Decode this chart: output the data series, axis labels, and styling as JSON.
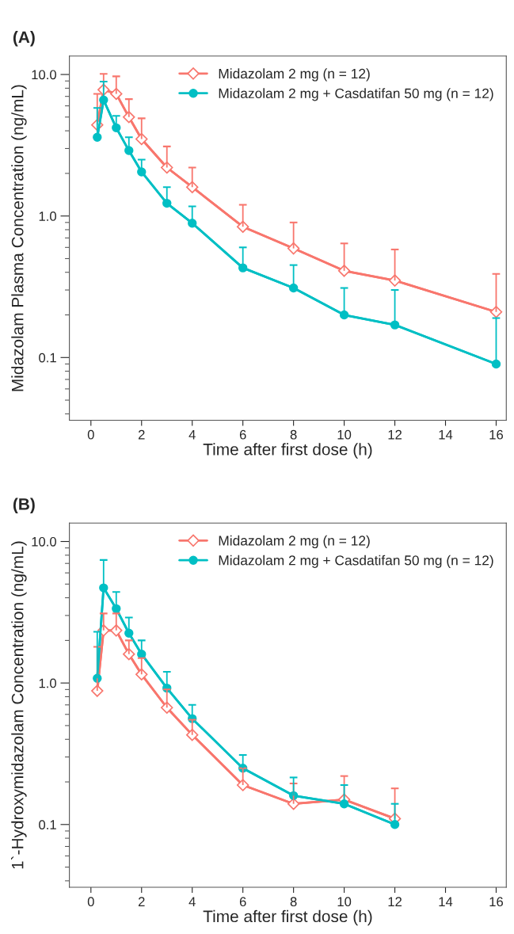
{
  "chart_data": [
    {
      "type": "line",
      "title": "(A)",
      "xlabel": "Time after first dose (h)",
      "ylabel": "Midazolam Plasma Concentration (ng/mL)",
      "log": "y",
      "xlim": [
        -0.85,
        16.4
      ],
      "xticks": [
        0,
        2,
        4,
        6,
        8,
        10,
        12,
        14,
        16
      ],
      "ylim": [
        0.036,
        13.5
      ],
      "yticks": [
        {
          "value": 0.04,
          "label": null
        },
        {
          "value": 0.05,
          "label": null
        },
        {
          "value": 0.06,
          "label": null
        },
        {
          "value": 0.07,
          "label": null
        },
        {
          "value": 0.08,
          "label": null
        },
        {
          "value": 0.09,
          "label": null
        },
        {
          "value": 0.1,
          "label": "0.1"
        },
        {
          "value": 0.2,
          "label": null
        },
        {
          "value": 0.3,
          "label": null
        },
        {
          "value": 0.4,
          "label": null
        },
        {
          "value": 0.5,
          "label": null
        },
        {
          "value": 0.6,
          "label": null
        },
        {
          "value": 0.7,
          "label": null
        },
        {
          "value": 0.8,
          "label": null
        },
        {
          "value": 0.9,
          "label": null
        },
        {
          "value": 1,
          "label": "1.0"
        },
        {
          "value": 2,
          "label": null
        },
        {
          "value": 3,
          "label": null
        },
        {
          "value": 4,
          "label": null
        },
        {
          "value": 5,
          "label": null
        },
        {
          "value": 6,
          "label": null
        },
        {
          "value": 7,
          "label": null
        },
        {
          "value": 8,
          "label": null
        },
        {
          "value": 9,
          "label": null
        },
        {
          "value": 10,
          "label": "10.0"
        }
      ],
      "grid": false,
      "legend": "top right",
      "x": [
        0.25,
        0.5,
        1,
        1.5,
        2,
        3,
        4,
        6,
        8,
        10,
        12,
        16
      ],
      "series": [
        {
          "name": "Midazolam 2 mg (n = 12)",
          "color": "#f8766d",
          "marker": "diamond",
          "values": [
            4.4,
            7.8,
            7.3,
            5.0,
            3.5,
            2.2,
            1.6,
            0.84,
            0.59,
            0.41,
            0.35,
            0.21
          ],
          "errors": [
            [
              4.4,
              7.3
            ],
            [
              7.8,
              10.1
            ],
            [
              7.3,
              9.7
            ],
            [
              5.0,
              6.7
            ],
            [
              3.5,
              4.9
            ],
            [
              2.2,
              3.1
            ],
            [
              1.6,
              2.2
            ],
            [
              0.84,
              1.2
            ],
            [
              0.59,
              0.9
            ],
            [
              0.41,
              0.64
            ],
            [
              0.35,
              0.58
            ],
            [
              0.21,
              0.39
            ]
          ]
        },
        {
          "name": "Midazolam 2 mg + Casdatifan 50 mg (n = 12)",
          "color": "#00bfc4",
          "marker": "circle",
          "values": [
            3.6,
            6.6,
            4.2,
            2.9,
            2.05,
            1.23,
            0.89,
            0.43,
            0.31,
            0.2,
            0.17,
            0.09
          ],
          "errors": [
            [
              3.6,
              5.8
            ],
            [
              6.6,
              8.9
            ],
            [
              4.2,
              5.1
            ],
            [
              2.9,
              3.6
            ],
            [
              2.05,
              2.5
            ],
            [
              1.23,
              1.6
            ],
            [
              0.89,
              1.17
            ],
            [
              0.43,
              0.6
            ],
            [
              0.31,
              0.45
            ],
            [
              0.2,
              0.31
            ],
            [
              0.17,
              0.3
            ],
            [
              0.09,
              0.19
            ]
          ]
        }
      ]
    },
    {
      "type": "line",
      "title": "(B)",
      "xlabel": "Time after first dose (h)",
      "ylabel": "1`-Hydroxymidazolam Concentration (ng/mL)",
      "log": "y",
      "xlim": [
        -0.85,
        16.4
      ],
      "xticks": [
        0,
        2,
        4,
        6,
        8,
        10,
        12,
        14,
        16
      ],
      "ylim": [
        0.036,
        13.5
      ],
      "yticks": [
        {
          "value": 0.04,
          "label": null
        },
        {
          "value": 0.05,
          "label": null
        },
        {
          "value": 0.06,
          "label": null
        },
        {
          "value": 0.07,
          "label": null
        },
        {
          "value": 0.08,
          "label": null
        },
        {
          "value": 0.09,
          "label": null
        },
        {
          "value": 0.1,
          "label": "0.1"
        },
        {
          "value": 0.2,
          "label": null
        },
        {
          "value": 0.3,
          "label": null
        },
        {
          "value": 0.4,
          "label": null
        },
        {
          "value": 0.5,
          "label": null
        },
        {
          "value": 0.6,
          "label": null
        },
        {
          "value": 0.7,
          "label": null
        },
        {
          "value": 0.8,
          "label": null
        },
        {
          "value": 0.9,
          "label": null
        },
        {
          "value": 1,
          "label": "1.0"
        },
        {
          "value": 2,
          "label": null
        },
        {
          "value": 3,
          "label": null
        },
        {
          "value": 4,
          "label": null
        },
        {
          "value": 5,
          "label": null
        },
        {
          "value": 6,
          "label": null
        },
        {
          "value": 7,
          "label": null
        },
        {
          "value": 8,
          "label": null
        },
        {
          "value": 9,
          "label": null
        },
        {
          "value": 10,
          "label": "10.0"
        }
      ],
      "grid": false,
      "legend": "top right",
      "x": [
        0.25,
        0.5,
        1,
        1.5,
        2,
        3,
        4,
        6,
        8,
        10,
        12
      ],
      "series": [
        {
          "name": "Midazolam 2 mg (n = 12)",
          "color": "#f8766d",
          "marker": "diamond",
          "values": [
            0.88,
            2.35,
            2.35,
            1.6,
            1.15,
            0.67,
            0.43,
            0.19,
            0.14,
            0.15,
            0.11
          ],
          "errors": [
            [
              0.88,
              1.8
            ],
            [
              2.35,
              3.1
            ],
            [
              2.35,
              3.1
            ],
            [
              1.6,
              2.0
            ],
            [
              1.15,
              1.5
            ],
            [
              0.67,
              0.9
            ],
            [
              0.43,
              0.55
            ],
            [
              0.19,
              0.25
            ],
            [
              0.14,
              0.195
            ],
            [
              0.15,
              0.22
            ],
            [
              0.11,
              0.18
            ]
          ]
        },
        {
          "name": "Midazolam 2 mg + Casdatifan 50 mg (n = 12)",
          "color": "#00bfc4",
          "marker": "circle",
          "values": [
            1.08,
            4.7,
            3.35,
            2.25,
            1.6,
            0.92,
            0.56,
            0.25,
            0.16,
            0.14,
            0.1
          ],
          "errors": [
            [
              1.08,
              2.3
            ],
            [
              4.7,
              7.4
            ],
            [
              3.35,
              4.4
            ],
            [
              2.25,
              2.9
            ],
            [
              1.6,
              2.0
            ],
            [
              0.92,
              1.2
            ],
            [
              0.56,
              0.7
            ],
            [
              0.25,
              0.31
            ],
            [
              0.16,
              0.215
            ],
            [
              0.14,
              0.19
            ],
            [
              0.1,
              0.14
            ]
          ]
        }
      ]
    }
  ]
}
